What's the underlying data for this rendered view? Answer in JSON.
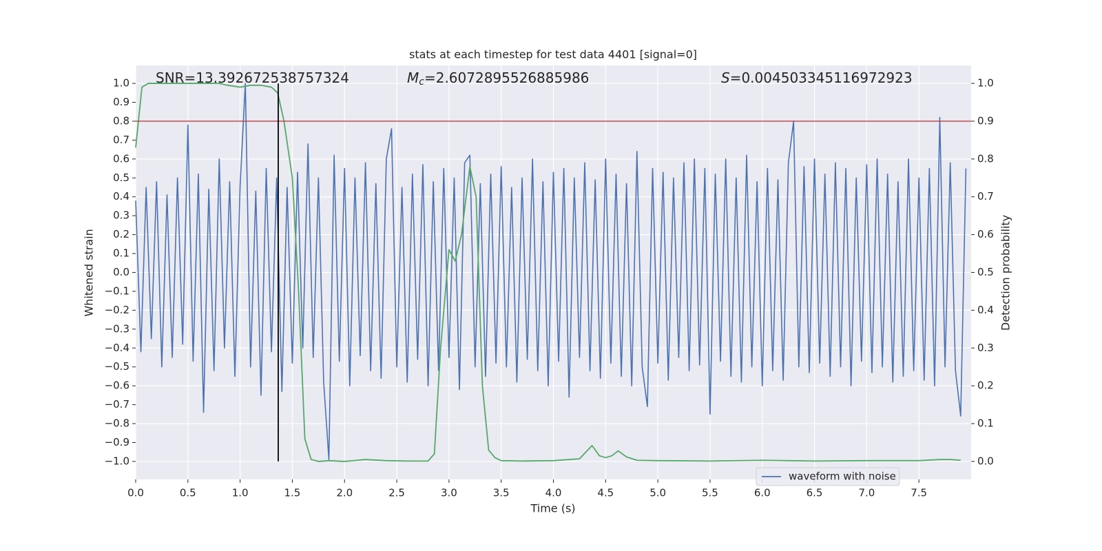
{
  "chart_data": {
    "type": "line",
    "title": "stats at each timestep for test data 4401 [signal=0]",
    "xlabel": "Time (s)",
    "ylabel": "Whitened strain",
    "y2label": "Detection probability",
    "annotations": [
      {
        "text": "SNR=13.392672538757324"
      },
      {
        "symbol": "M",
        "subscript": "c",
        "text": "=2.6072895526885986"
      },
      {
        "symbol": "S",
        "text": "=0.004503345116972923"
      }
    ],
    "xlim": [
      0,
      8
    ],
    "ylim": [
      -1.095,
      1.095
    ],
    "y2lim": [
      -0.0475,
      1.0475
    ],
    "grid": true,
    "legend": "lower right",
    "xticks": [
      {
        "value": 0,
        "label": "0.0"
      },
      {
        "value": 0.5,
        "label": "0.5"
      },
      {
        "value": 1,
        "label": "1.0"
      },
      {
        "value": 1.5,
        "label": "1.5"
      },
      {
        "value": 2,
        "label": "2.0"
      },
      {
        "value": 2.5,
        "label": "2.5"
      },
      {
        "value": 3,
        "label": "3.0"
      },
      {
        "value": 3.5,
        "label": "3.5"
      },
      {
        "value": 4,
        "label": "4.0"
      },
      {
        "value": 4.5,
        "label": "4.5"
      },
      {
        "value": 5,
        "label": "5.0"
      },
      {
        "value": 5.5,
        "label": "5.5"
      },
      {
        "value": 6,
        "label": "6.0"
      },
      {
        "value": 6.5,
        "label": "6.5"
      },
      {
        "value": 7,
        "label": "7.0"
      },
      {
        "value": 7.5,
        "label": "7.5"
      }
    ],
    "yticks": [
      {
        "value": -1,
        "label": "−1.0"
      },
      {
        "value": -0.9,
        "label": "−0.9"
      },
      {
        "value": -0.8,
        "label": "−0.8"
      },
      {
        "value": -0.7,
        "label": "−0.7"
      },
      {
        "value": -0.6,
        "label": "−0.6"
      },
      {
        "value": -0.5,
        "label": "−0.5"
      },
      {
        "value": -0.4,
        "label": "−0.4"
      },
      {
        "value": -0.3,
        "label": "−0.3"
      },
      {
        "value": -0.2,
        "label": "−0.2"
      },
      {
        "value": -0.1,
        "label": "−0.1"
      },
      {
        "value": 0,
        "label": "0.0"
      },
      {
        "value": 0.1,
        "label": "0.1"
      },
      {
        "value": 0.2,
        "label": "0.2"
      },
      {
        "value": 0.3,
        "label": "0.3"
      },
      {
        "value": 0.4,
        "label": "0.4"
      },
      {
        "value": 0.5,
        "label": "0.5"
      },
      {
        "value": 0.6,
        "label": "0.6"
      },
      {
        "value": 0.7,
        "label": "0.7"
      },
      {
        "value": 0.8,
        "label": "0.8"
      },
      {
        "value": 0.9,
        "label": "0.9"
      },
      {
        "value": 1,
        "label": "1.0"
      }
    ],
    "y2ticks": [
      {
        "value": 0,
        "label": "0.0"
      },
      {
        "value": 0.1,
        "label": "0.1"
      },
      {
        "value": 0.2,
        "label": "0.2"
      },
      {
        "value": 0.3,
        "label": "0.3"
      },
      {
        "value": 0.4,
        "label": "0.4"
      },
      {
        "value": 0.5,
        "label": "0.5"
      },
      {
        "value": 0.6,
        "label": "0.6"
      },
      {
        "value": 0.7,
        "label": "0.7"
      },
      {
        "value": 0.8,
        "label": "0.8"
      },
      {
        "value": 0.9,
        "label": "0.9"
      },
      {
        "value": 1,
        "label": "1.0"
      }
    ],
    "threshold": {
      "value": 0.9,
      "axis": "y2",
      "color": "#c03d3e"
    },
    "marker": {
      "x": 1.365,
      "y": [
        -1.0,
        1.0
      ],
      "color": "#000000"
    },
    "series": [
      {
        "name": "waveform with noise",
        "color": "#4c72b0",
        "x": [
          0,
          0.05,
          0.1,
          0.15,
          0.2,
          0.25,
          0.3,
          0.35,
          0.4,
          0.45,
          0.5,
          0.55,
          0.6,
          0.65,
          0.7,
          0.75,
          0.8,
          0.85,
          0.9,
          0.95,
          1,
          1.05,
          1.1,
          1.15,
          1.2,
          1.25,
          1.3,
          1.35,
          1.4,
          1.45,
          1.5,
          1.55,
          1.6,
          1.65,
          1.7,
          1.75,
          1.8,
          1.85,
          1.9,
          1.95,
          2,
          2.05,
          2.1,
          2.15,
          2.2,
          2.25,
          2.3,
          2.35,
          2.4,
          2.45,
          2.5,
          2.55,
          2.6,
          2.65,
          2.7,
          2.75,
          2.8,
          2.85,
          2.9,
          2.95,
          3,
          3.05,
          3.1,
          3.15,
          3.2,
          3.25,
          3.3,
          3.35,
          3.4,
          3.45,
          3.5,
          3.55,
          3.6,
          3.65,
          3.7,
          3.75,
          3.8,
          3.85,
          3.9,
          3.95,
          4,
          4.05,
          4.1,
          4.15,
          4.2,
          4.25,
          4.3,
          4.35,
          4.4,
          4.45,
          4.5,
          4.55,
          4.6,
          4.65,
          4.7,
          4.75,
          4.8,
          4.85,
          4.9,
          4.95,
          5,
          5.05,
          5.1,
          5.15,
          5.2,
          5.25,
          5.3,
          5.35,
          5.4,
          5.45,
          5.5,
          5.55,
          5.6,
          5.65,
          5.7,
          5.75,
          5.8,
          5.85,
          5.9,
          5.95,
          6,
          6.05,
          6.1,
          6.15,
          6.2,
          6.25,
          6.3,
          6.35,
          6.4,
          6.45,
          6.5,
          6.55,
          6.6,
          6.65,
          6.7,
          6.75,
          6.8,
          6.85,
          6.9,
          6.95,
          7,
          7.05,
          7.1,
          7.15,
          7.2,
          7.25,
          7.3,
          7.35,
          7.4,
          7.45,
          7.5,
          7.55,
          7.6,
          7.65,
          7.7,
          7.75,
          7.8,
          7.85,
          7.9,
          7.95
        ],
        "values": [
          0.38,
          -0.42,
          0.45,
          -0.35,
          0.48,
          -0.5,
          0.41,
          -0.45,
          0.5,
          -0.38,
          0.78,
          -0.47,
          0.52,
          -0.74,
          0.44,
          -0.52,
          0.6,
          -0.4,
          0.48,
          -0.55,
          0.46,
          1.0,
          -0.5,
          0.43,
          -0.65,
          0.55,
          -0.42,
          0.5,
          -0.63,
          0.45,
          -0.48,
          0.53,
          -0.4,
          0.68,
          -0.45,
          0.5,
          -0.58,
          -0.99,
          0.62,
          -0.47,
          0.55,
          -0.6,
          0.5,
          -0.44,
          0.58,
          -0.52,
          0.47,
          -0.56,
          0.6,
          0.76,
          -0.5,
          0.45,
          -0.58,
          0.52,
          -0.46,
          0.57,
          -0.6,
          0.48,
          -0.52,
          0.55,
          -0.45,
          0.5,
          -0.62,
          0.58,
          0.62,
          -0.5,
          0.47,
          -0.55,
          0.52,
          -0.48,
          0.56,
          -0.5,
          0.45,
          -0.58,
          0.5,
          -0.46,
          0.6,
          -0.52,
          0.48,
          -0.6,
          0.53,
          -0.47,
          0.55,
          -0.66,
          0.5,
          -0.45,
          0.58,
          -0.52,
          0.49,
          -0.56,
          0.6,
          -0.48,
          0.52,
          -0.55,
          0.47,
          -0.6,
          0.64,
          -0.5,
          -0.71,
          0.55,
          -0.48,
          0.53,
          -0.57,
          0.5,
          -0.45,
          0.58,
          -0.52,
          0.6,
          -0.49,
          0.55,
          -0.75,
          0.52,
          -0.47,
          0.6,
          -0.55,
          0.5,
          -0.58,
          0.62,
          -0.5,
          0.48,
          -0.6,
          0.55,
          -0.52,
          0.49,
          -0.57,
          0.58,
          0.8,
          -0.5,
          0.56,
          -0.53,
          0.6,
          -0.48,
          0.52,
          -0.55,
          0.58,
          -0.5,
          0.55,
          -0.6,
          0.5,
          -0.47,
          0.57,
          -0.53,
          0.6,
          -0.5,
          0.52,
          -0.58,
          0.48,
          -0.55,
          0.6,
          -0.52,
          0.5,
          -0.57,
          0.55,
          -0.6,
          0.82,
          -0.5,
          0.58,
          -0.52,
          -0.76,
          0.55
        ]
      },
      {
        "color": "#55a868",
        "axis": "y2",
        "x": [
          0,
          0.06,
          0.12,
          0.2,
          0.4,
          0.6,
          0.8,
          0.88,
          1.0,
          1.1,
          1.2,
          1.3,
          1.36,
          1.42,
          1.5,
          1.56,
          1.62,
          1.68,
          1.75,
          1.85,
          2.0,
          2.2,
          2.4,
          2.6,
          2.8,
          2.86,
          2.92,
          3.0,
          3.06,
          3.12,
          3.2,
          3.26,
          3.32,
          3.38,
          3.44,
          3.5,
          3.7,
          4.0,
          4.15,
          4.25,
          4.37,
          4.44,
          4.5,
          4.56,
          4.62,
          4.7,
          4.8,
          5.0,
          5.5,
          6.0,
          6.5,
          7.0,
          7.5,
          7.7,
          7.8,
          7.9
        ],
        "values": [
          0.83,
          0.99,
          1.0,
          1.0,
          1.0,
          1.0,
          1.0,
          0.995,
          0.99,
          0.995,
          0.995,
          0.99,
          0.975,
          0.9,
          0.75,
          0.45,
          0.06,
          0.005,
          0.0,
          0.002,
          0.0,
          0.005,
          0.002,
          0.001,
          0.001,
          0.02,
          0.3,
          0.56,
          0.53,
          0.6,
          0.78,
          0.7,
          0.2,
          0.03,
          0.01,
          0.002,
          0.001,
          0.002,
          0.005,
          0.007,
          0.042,
          0.015,
          0.01,
          0.015,
          0.028,
          0.012,
          0.003,
          0.002,
          0.001,
          0.003,
          0.001,
          0.002,
          0.002,
          0.005,
          0.005,
          0.003
        ]
      }
    ]
  }
}
